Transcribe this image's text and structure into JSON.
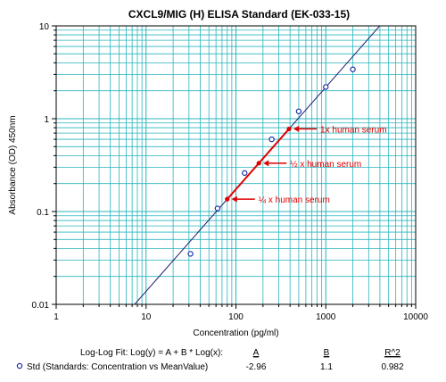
{
  "chart_data": {
    "type": "scatter",
    "title": "CXCL9/MIG (H) ELISA  Standard (EK-033-15)",
    "xlabel": "Concentration (pg/ml)",
    "ylabel": "Absorbance (OD) 450nm",
    "x_scale": "log",
    "y_scale": "log",
    "xlim": [
      1,
      10000
    ],
    "ylim": [
      0.01,
      10
    ],
    "x_tick_labels": [
      "1",
      "10",
      "100",
      "1000",
      "10000"
    ],
    "y_tick_labels": [
      "0.01",
      "0.1",
      "1",
      "10"
    ],
    "grid": true,
    "colors": {
      "grid": "#28b4be",
      "fit_line": "#1c1c6e",
      "points": "#1a2ea8",
      "annotation": "#e00000"
    },
    "series": [
      {
        "name": "Std (Standards: Concentration vs MeanValue)",
        "marker": "open-circle",
        "points": [
          {
            "x": 31.25,
            "y": 0.035
          },
          {
            "x": 62.5,
            "y": 0.108
          },
          {
            "x": 125,
            "y": 0.26
          },
          {
            "x": 250,
            "y": 0.6
          },
          {
            "x": 500,
            "y": 1.2
          },
          {
            "x": 1000,
            "y": 2.2
          },
          {
            "x": 2000,
            "y": 3.4
          }
        ]
      }
    ],
    "fit": {
      "A": -2.96,
      "B": 1.1
    },
    "highlight_segment": {
      "x_from": 80,
      "x_to": 390
    },
    "annotations": [
      {
        "label": "1x human serum",
        "x": 390
      },
      {
        "label": "½ x human serum",
        "x": 180
      },
      {
        "label": "¼ x human serum",
        "x": 80
      }
    ],
    "fit_table": {
      "title": "Log-Log Fit: Log(y) = A + B * Log(x):",
      "headers": [
        "A",
        "B",
        "R^2"
      ],
      "rows": [
        {
          "label": "Std (Standards: Concentration vs MeanValue)",
          "values": [
            "-2.96",
            "1.1",
            "0.982"
          ]
        }
      ]
    }
  }
}
